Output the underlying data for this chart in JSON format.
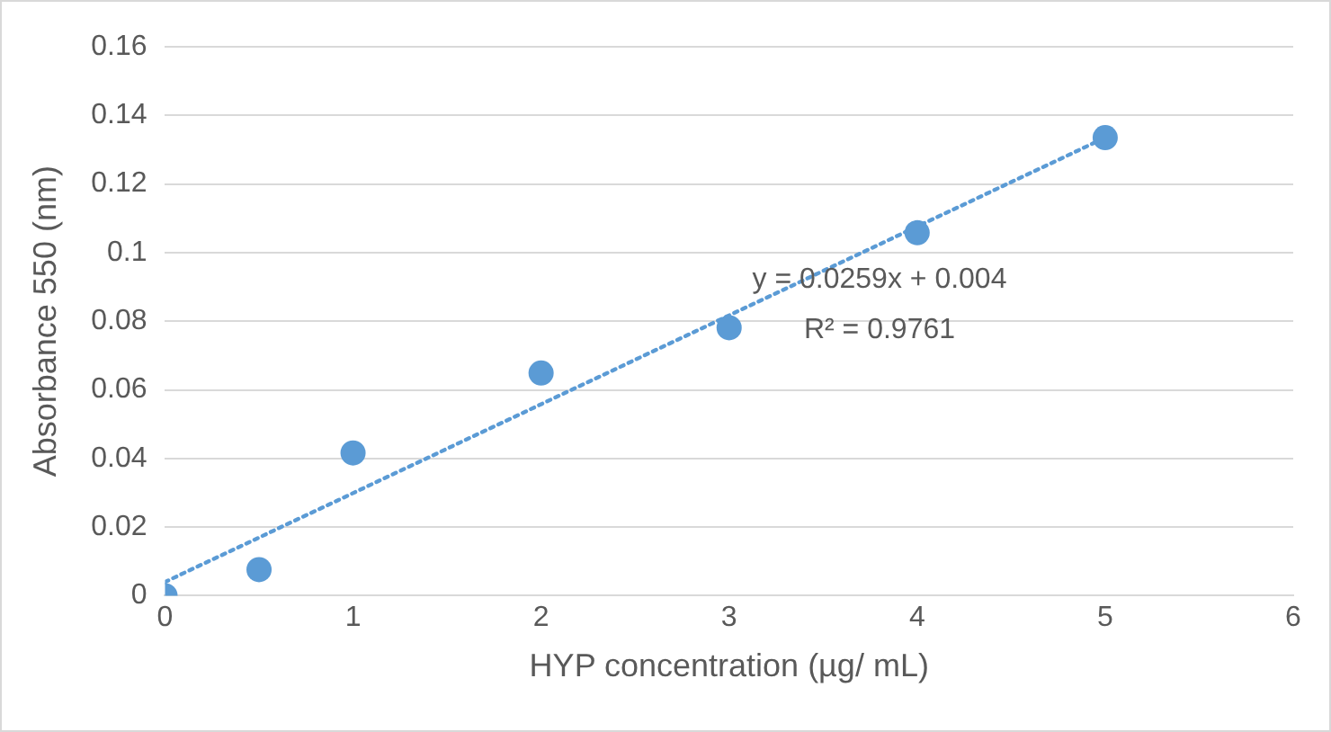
{
  "chart_data": {
    "type": "scatter",
    "xlabel": "HYP concentration (µg/ mL)",
    "ylabel": "Absorbance 550 (nm)",
    "xlim": [
      0,
      6
    ],
    "xticks": [
      0,
      1,
      2,
      3,
      4,
      5,
      6
    ],
    "ylim": [
      0,
      0.16
    ],
    "yticks": [
      0,
      0.02,
      0.04,
      0.06,
      0.08,
      0.1,
      0.12,
      0.14,
      0.16
    ],
    "grid": "y",
    "legend": false,
    "marker": "circle",
    "series": [
      {
        "color": "#5b9bd5",
        "x": [
          0,
          0.5,
          1,
          2,
          3,
          4,
          5
        ],
        "values": [
          0,
          0.0076,
          0.0416,
          0.0649,
          0.0781,
          0.1058,
          0.1335
        ]
      },
      {
        "type": "line",
        "line_style": "dotted",
        "marker": "none",
        "color": "#5b9bd5",
        "x": [
          0,
          5
        ],
        "values": [
          0.004,
          0.1335
        ]
      }
    ],
    "annotations": [
      "y = 0.0259x + 0.004",
      "R² = 0.9761"
    ]
  }
}
